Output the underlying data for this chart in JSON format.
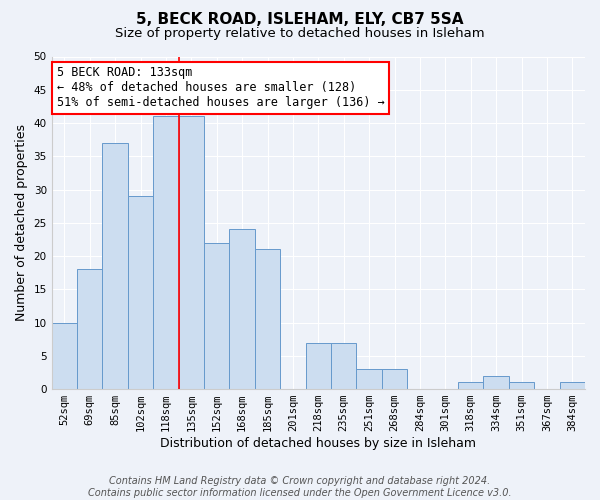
{
  "title": "5, BECK ROAD, ISLEHAM, ELY, CB7 5SA",
  "subtitle": "Size of property relative to detached houses in Isleham",
  "xlabel": "Distribution of detached houses by size in Isleham",
  "ylabel": "Number of detached properties",
  "bin_labels": [
    "52sqm",
    "69sqm",
    "85sqm",
    "102sqm",
    "118sqm",
    "135sqm",
    "152sqm",
    "168sqm",
    "185sqm",
    "201sqm",
    "218sqm",
    "235sqm",
    "251sqm",
    "268sqm",
    "284sqm",
    "301sqm",
    "318sqm",
    "334sqm",
    "351sqm",
    "367sqm",
    "384sqm"
  ],
  "bar_values": [
    10,
    18,
    37,
    29,
    41,
    41,
    22,
    24,
    21,
    0,
    7,
    7,
    3,
    3,
    0,
    0,
    1,
    2,
    1,
    0,
    1
  ],
  "bar_color": "#ccddf0",
  "bar_edge_color": "#6699cc",
  "ylim": [
    0,
    50
  ],
  "yticks": [
    0,
    5,
    10,
    15,
    20,
    25,
    30,
    35,
    40,
    45,
    50
  ],
  "annotation_title": "5 BECK ROAD: 133sqm",
  "annotation_line1": "← 48% of detached houses are smaller (128)",
  "annotation_line2": "51% of semi-detached houses are larger (136) →",
  "red_line_x": 4.5,
  "footer1": "Contains HM Land Registry data © Crown copyright and database right 2024.",
  "footer2": "Contains public sector information licensed under the Open Government Licence v3.0.",
  "bg_color": "#eef2f9",
  "grid_color": "#ffffff",
  "title_fontsize": 11,
  "subtitle_fontsize": 9.5,
  "label_fontsize": 9,
  "tick_fontsize": 7.5,
  "footer_fontsize": 7,
  "ann_fontsize": 8.5
}
